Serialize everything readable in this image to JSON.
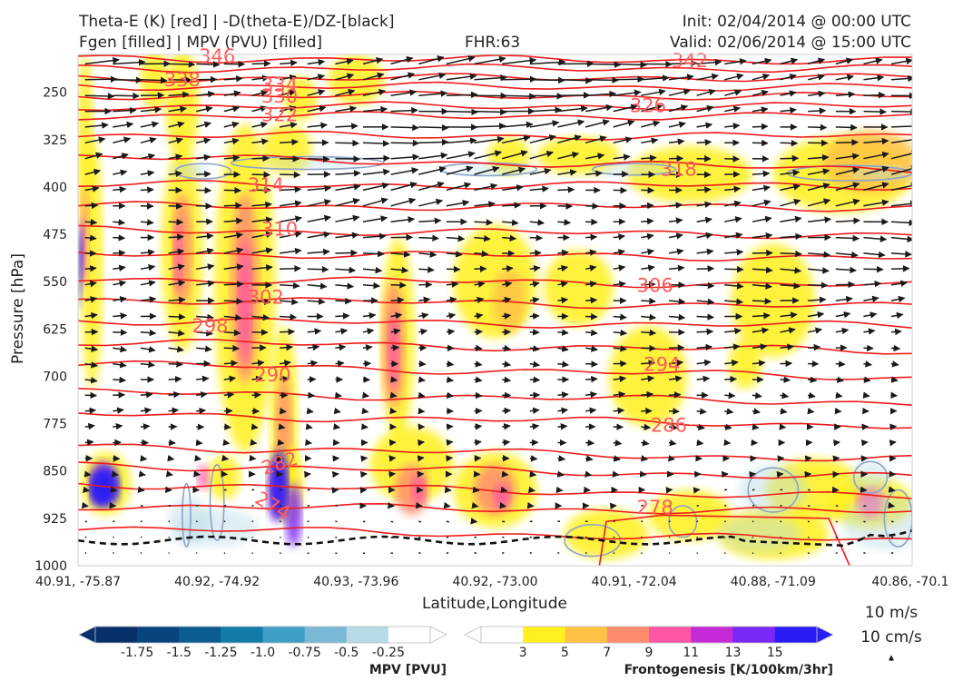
{
  "header": {
    "line1_left": "Theta-E (K) [red] | -D(theta-E)/DZ-[black]",
    "line2_left": "Fgen [filled] | MPV (PVU) [filled]",
    "line2_mid": "FHR:63",
    "line1_right": "Init: 02/04/2014 @ 00:00 UTC",
    "line2_right": "Valid: 02/06/2014 @ 15:00 UTC"
  },
  "chart_data": {
    "type": "cross-section",
    "xlabel": "Latitude,Longitude",
    "ylabel": "Pressure [hPa]",
    "y_reversed": true,
    "ylim": [
      1000,
      190
    ],
    "xlim": [
      0,
      6
    ],
    "y_ticks": [
      250,
      325,
      400,
      475,
      550,
      625,
      700,
      775,
      850,
      925,
      1000
    ],
    "x_ticks": [
      "40.91, -75.87",
      "40.92, -74.92",
      "40.93, -73.96",
      "40.92, -73.00",
      "40.91, -72.04",
      "40.88, -71.09",
      "40.86, -70.1"
    ],
    "theta_e_contours": [
      {
        "label": "342",
        "x": 4.4,
        "p": 200
      },
      {
        "label": "346",
        "x": 1.0,
        "p": 193
      },
      {
        "label": "338",
        "x": 0.75,
        "p": 230
      },
      {
        "label": "334",
        "x": 1.45,
        "p": 238
      },
      {
        "label": "330",
        "x": 1.45,
        "p": 256
      },
      {
        "label": "326",
        "x": 4.1,
        "p": 271
      },
      {
        "label": "322",
        "x": 1.45,
        "p": 286
      },
      {
        "label": "318",
        "x": 4.32,
        "p": 372
      },
      {
        "label": "314",
        "x": 1.35,
        "p": 397
      },
      {
        "label": "310",
        "x": 1.45,
        "p": 467
      },
      {
        "label": "306",
        "x": 4.15,
        "p": 556
      },
      {
        "label": "302",
        "x": 1.35,
        "p": 575
      },
      {
        "label": "298",
        "x": 0.95,
        "p": 620
      },
      {
        "label": "294",
        "x": 4.2,
        "p": 681
      },
      {
        "label": "290",
        "x": 1.4,
        "p": 698
      },
      {
        "label": "286",
        "x": 4.25,
        "p": 778
      },
      {
        "label": "282",
        "x": 1.45,
        "p": 838
      },
      {
        "label": "278",
        "x": 4.15,
        "p": 908
      },
      {
        "label": "274",
        "x": 1.4,
        "p": 905
      }
    ],
    "mpv_colorbar": {
      "title": "MPV [PVU]",
      "ticks": [
        "-1.75",
        "-1.5",
        "-1.25",
        "-1.0",
        "-0.75",
        "-0.5",
        "-0.25"
      ],
      "colors": [
        "#08306b",
        "#08457e",
        "#0b5c93",
        "#127ca8",
        "#3d9ec6",
        "#7ab9d6",
        "#b7dbe6",
        "#ffffff"
      ]
    },
    "fgen_colorbar": {
      "title": "Frontogenesis [K/100km/3hr]",
      "ticks": [
        "3",
        "5",
        "7",
        "9",
        "11",
        "13",
        "15"
      ],
      "colors": [
        "#ffffff",
        "#fff01e",
        "#ffc244",
        "#ff8c6e",
        "#ff55a5",
        "#c42ad6",
        "#7a28f6",
        "#2a1cf6"
      ]
    },
    "vector_reference": {
      "line1": "10 m/s",
      "line2": "10 cm/s"
    }
  }
}
